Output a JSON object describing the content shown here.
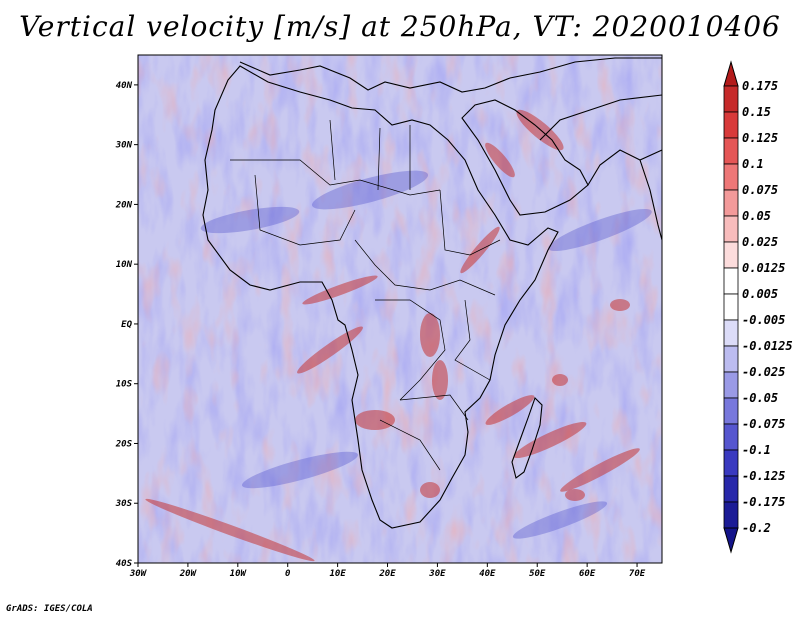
{
  "title": "Vertical velocity [m/s] at 250hPa, VT: 2020010406",
  "footer": "GrADS: IGES/COLA",
  "map": {
    "lon_range": [
      -30,
      75
    ],
    "lat_range": [
      -40,
      45
    ],
    "lat_ticks": [
      "40N",
      "30N",
      "20N",
      "10N",
      "EQ",
      "10S",
      "20S",
      "30S",
      "40S"
    ],
    "lon_ticks": [
      "30W",
      "20W",
      "10W",
      "0",
      "10E",
      "20E",
      "30E",
      "40E",
      "50E",
      "60E",
      "70E"
    ]
  },
  "colorbar": {
    "levels": [
      "0.175",
      "0.15",
      "0.125",
      "0.1",
      "0.075",
      "0.05",
      "0.025",
      "0.0125",
      "0.005",
      "-0.005",
      "-0.0125",
      "-0.025",
      "-0.05",
      "-0.075",
      "-0.1",
      "-0.125",
      "-0.175",
      "-0.2"
    ],
    "colors": [
      "#b31b1b",
      "#c62a2a",
      "#d83a3a",
      "#e55656",
      "#ee7777",
      "#f39a9a",
      "#f8bcbc",
      "#fcdcdc",
      "#ffffff",
      "#ffffff",
      "#dcdcf8",
      "#bcbcf0",
      "#9a9ae6",
      "#7878dc",
      "#5656cf",
      "#3a3ac0",
      "#2828aa",
      "#1c1c96",
      "#14148a"
    ]
  }
}
